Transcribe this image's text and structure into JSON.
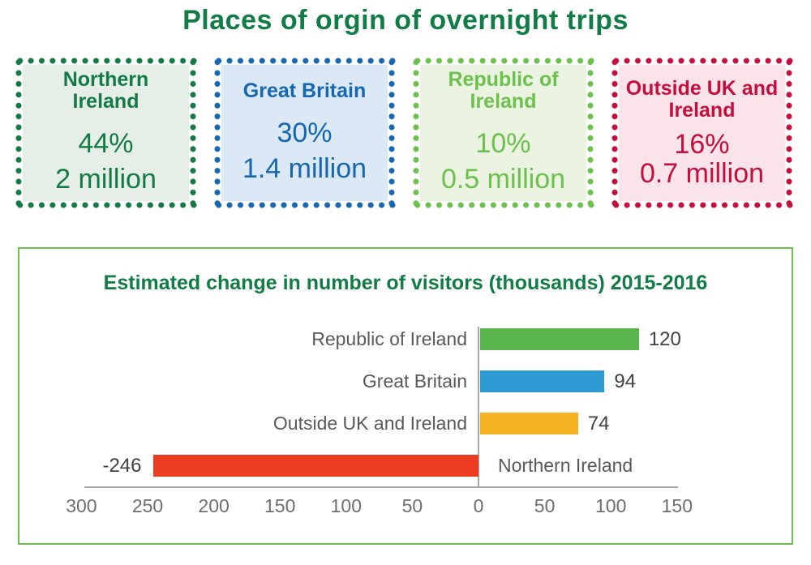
{
  "page": {
    "title": "Places of orgin of overnight trips",
    "title_color": "#117c45"
  },
  "origin_boxes": [
    {
      "label": "Northern Ireland",
      "percent": "44%",
      "amount": "2 million",
      "color": "#147a45",
      "bg": "#e5efe8"
    },
    {
      "label": "Great Britain",
      "percent": "30%",
      "amount": "1.4 million",
      "color": "#1766b0",
      "bg": "#dbe8f5"
    },
    {
      "label": "Republic of Ireland",
      "percent": "10%",
      "amount": "0.5 million",
      "color": "#6cc04e",
      "bg": "#eaf4e1"
    },
    {
      "label": "Outside UK and Ireland",
      "percent": "16%",
      "amount": "0.7 million",
      "color": "#c40f3e",
      "bg": "#fbe4e9"
    }
  ],
  "chart_data": {
    "type": "bar",
    "orientation": "horizontal",
    "title": "Estimated change in number of visitors (thousands) 2015-2016",
    "categories": [
      "Republic of Ireland",
      "Great Britain",
      "Outside UK and Ireland",
      "Northern Ireland"
    ],
    "values": [
      120,
      94,
      74,
      -246
    ],
    "bar_colors": [
      "#5bb54e",
      "#2e9ad3",
      "#f4b223",
      "#ee3c22"
    ],
    "xlim": [
      -300,
      150
    ],
    "grid": false,
    "legend": "none",
    "x_ticks": [
      {
        "value": -300,
        "label": "300"
      },
      {
        "value": -250,
        "label": "250"
      },
      {
        "value": -200,
        "label": "200"
      },
      {
        "value": -150,
        "label": "150"
      },
      {
        "value": -100,
        "label": "100"
      },
      {
        "value": -50,
        "label": "50"
      },
      {
        "value": 0,
        "label": "0"
      },
      {
        "value": 50,
        "label": "50"
      },
      {
        "value": 100,
        "label": "100"
      },
      {
        "value": 150,
        "label": "150"
      }
    ],
    "axis_color": "#a6a8ab",
    "tick_label_color": "#6d6e71",
    "category_label_color": "#58595b",
    "value_label_color": "#414042",
    "panel_border_color": "#6abf4b",
    "title_color": "#117c45"
  }
}
